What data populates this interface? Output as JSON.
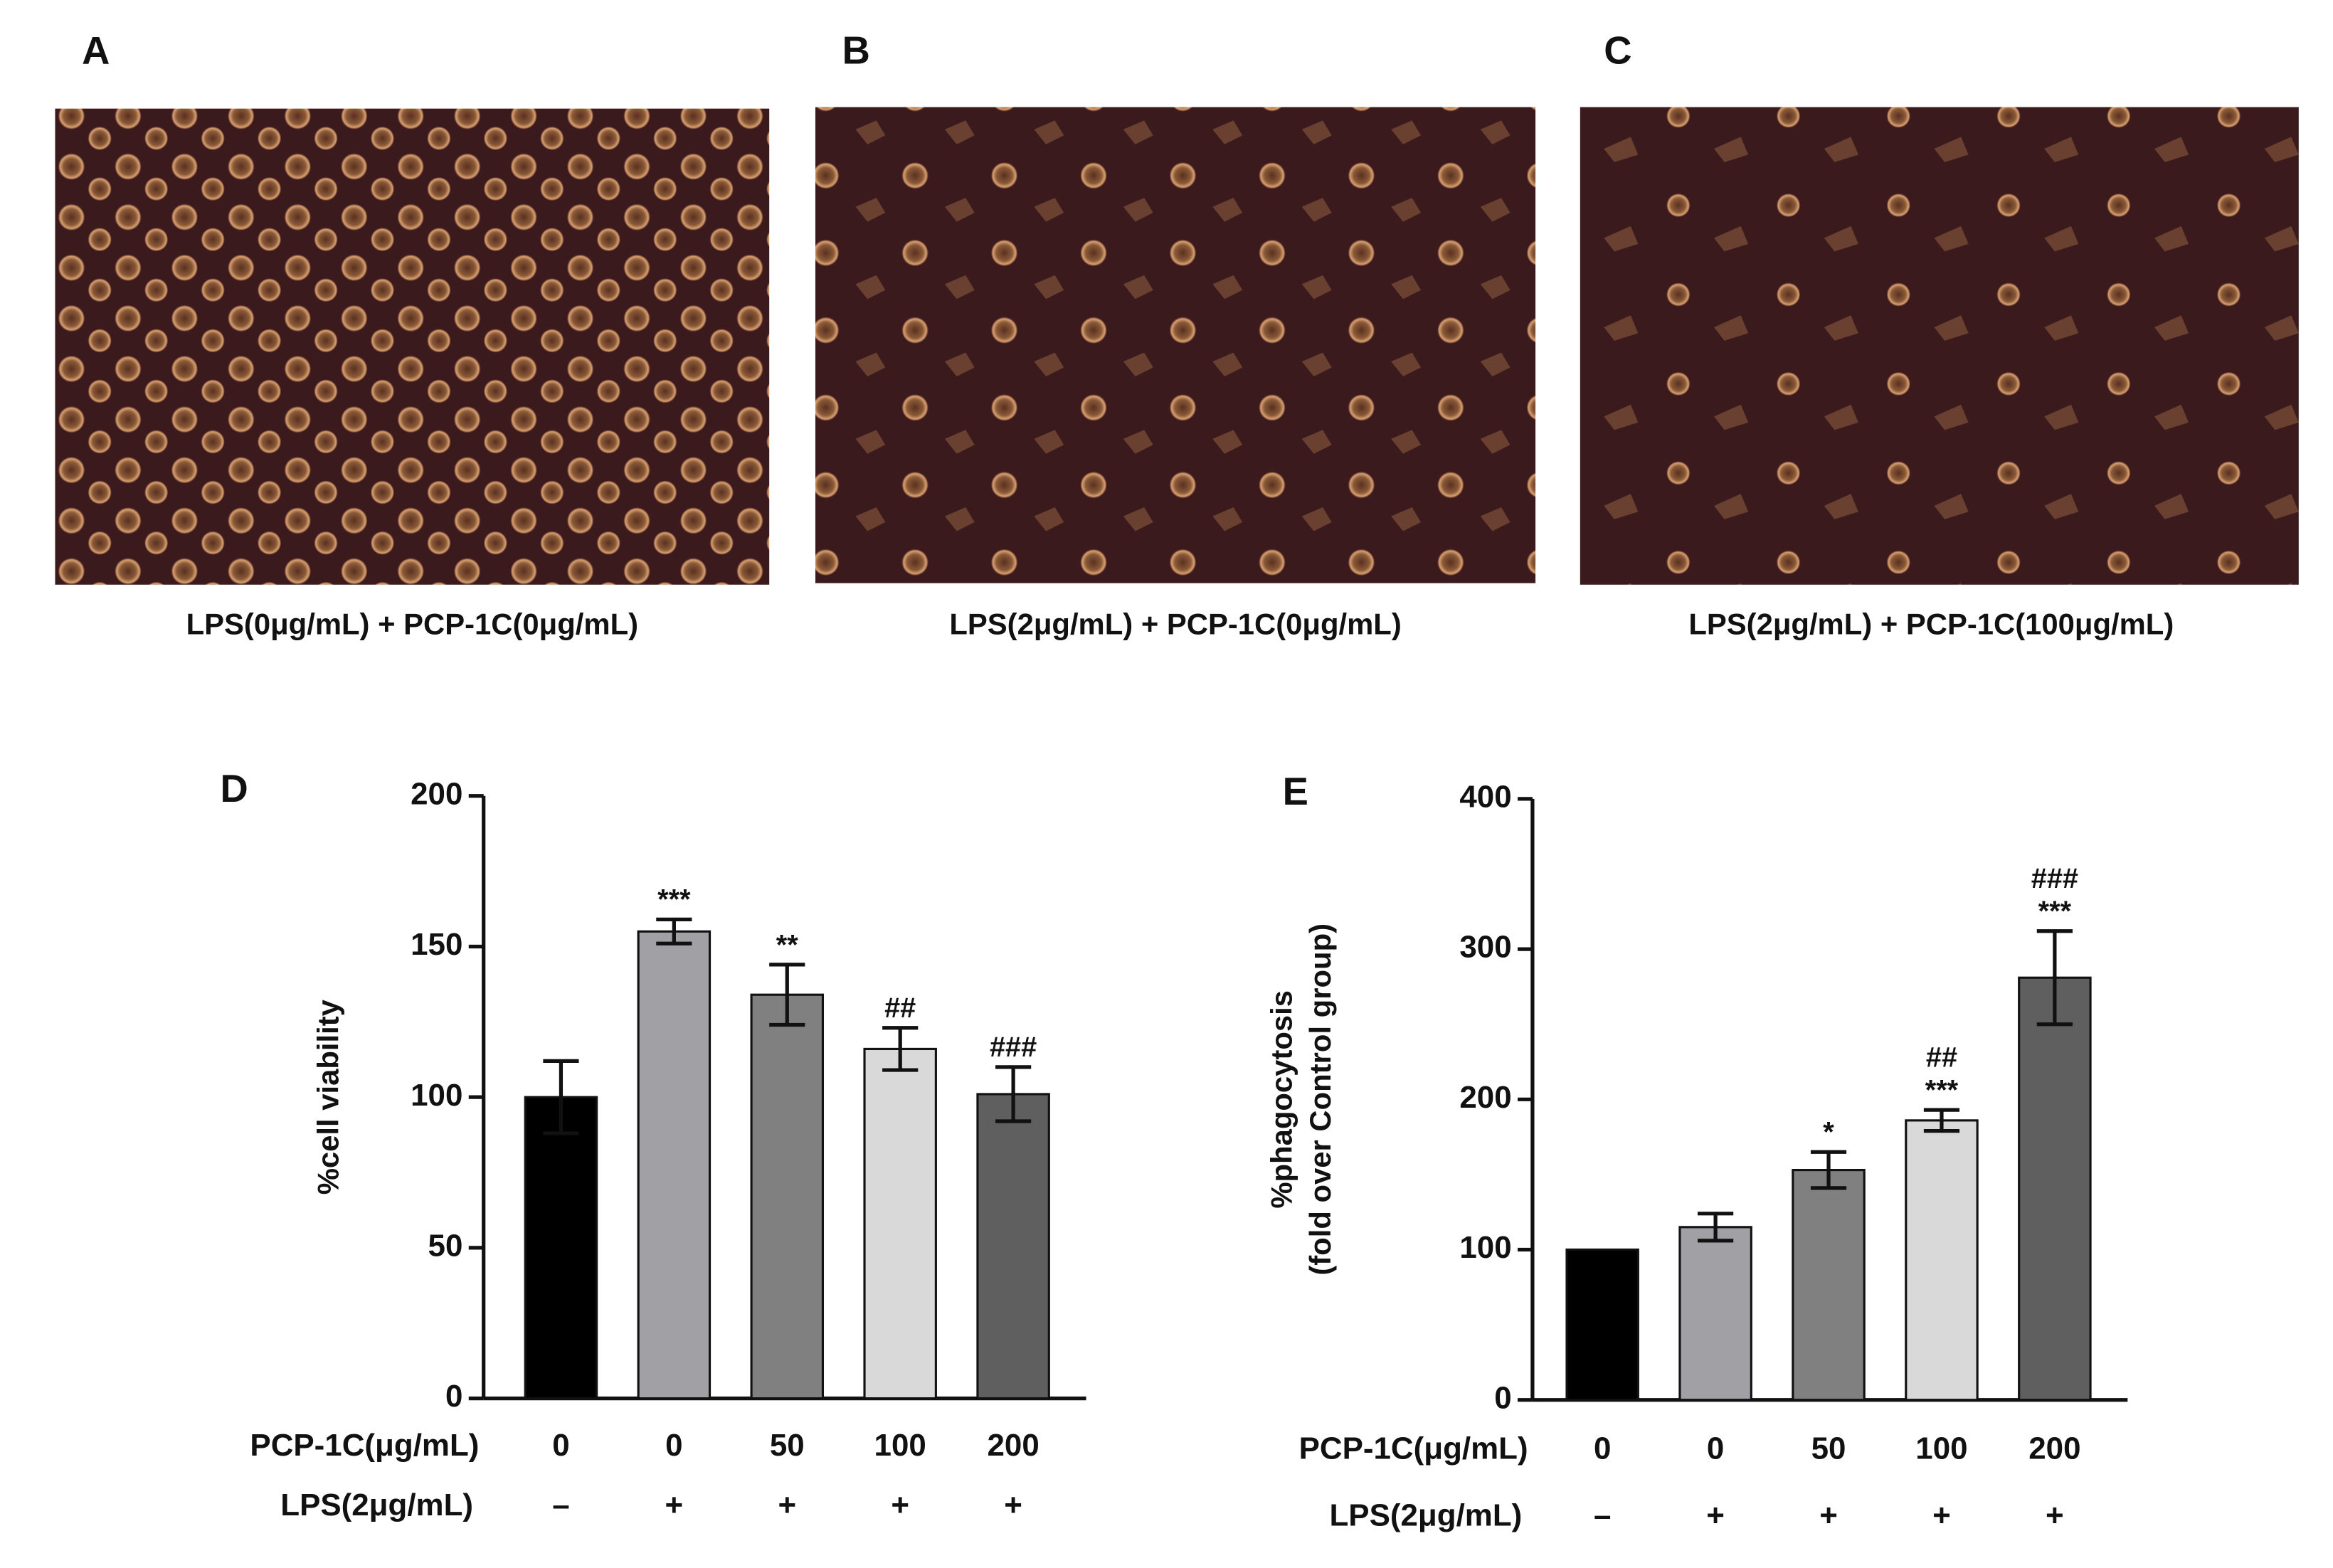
{
  "panels": [
    {
      "label": "A",
      "caption": "LPS(0μg/mL) + PCP-1C(0μg/mL)"
    },
    {
      "label": "B",
      "caption": "LPS(2μg/mL) + PCP-1C(0μg/mL)"
    },
    {
      "label": "C",
      "caption": "LPS(2μg/mL) + PCP-1C(100μg/mL)"
    }
  ],
  "chart_data": [
    {
      "type": "bar",
      "panel_label": "D",
      "ylabel": [
        "%cell viability"
      ],
      "categories": [
        "0",
        "0",
        "50",
        "100",
        "200"
      ],
      "row_label": "PCP-1C(μg/mL)",
      "lps_label": "LPS(2μg/mL)",
      "lps": [
        "–",
        "+",
        "+",
        "+",
        "+"
      ],
      "values": [
        100,
        155,
        134,
        116,
        101
      ],
      "errors": [
        12,
        4,
        10,
        7,
        9
      ],
      "colors": [
        "#000000",
        "#a1a1a5",
        "#808080",
        "#d9d9d9",
        "#5f5f5f"
      ],
      "annotations": [
        [],
        [
          "***"
        ],
        [
          "**"
        ],
        [
          "##"
        ],
        [
          "###"
        ]
      ],
      "ylim": [
        0,
        200
      ],
      "yticks": [
        0,
        50,
        100,
        150,
        200
      ]
    },
    {
      "type": "bar",
      "panel_label": "E",
      "ylabel": [
        "%phagocytosis",
        "(fold over Control group)"
      ],
      "categories": [
        "0",
        "0",
        "50",
        "100",
        "200"
      ],
      "row_label": "PCP-1C(μg/mL)",
      "lps_label": "LPS(2μg/mL)",
      "lps": [
        "–",
        "+",
        "+",
        "+",
        "+"
      ],
      "values": [
        100,
        115,
        153,
        186,
        281
      ],
      "errors": [
        0,
        9,
        12,
        7,
        31
      ],
      "colors": [
        "#000000",
        "#a1a1a5",
        "#808080",
        "#d9d9d9",
        "#5f5f5f"
      ],
      "annotations": [
        [],
        [],
        [
          "*"
        ],
        [
          "##",
          "***"
        ],
        [
          "###",
          "***"
        ]
      ],
      "ylim": [
        0,
        400
      ],
      "yticks": [
        0,
        100,
        200,
        300,
        400
      ]
    }
  ]
}
